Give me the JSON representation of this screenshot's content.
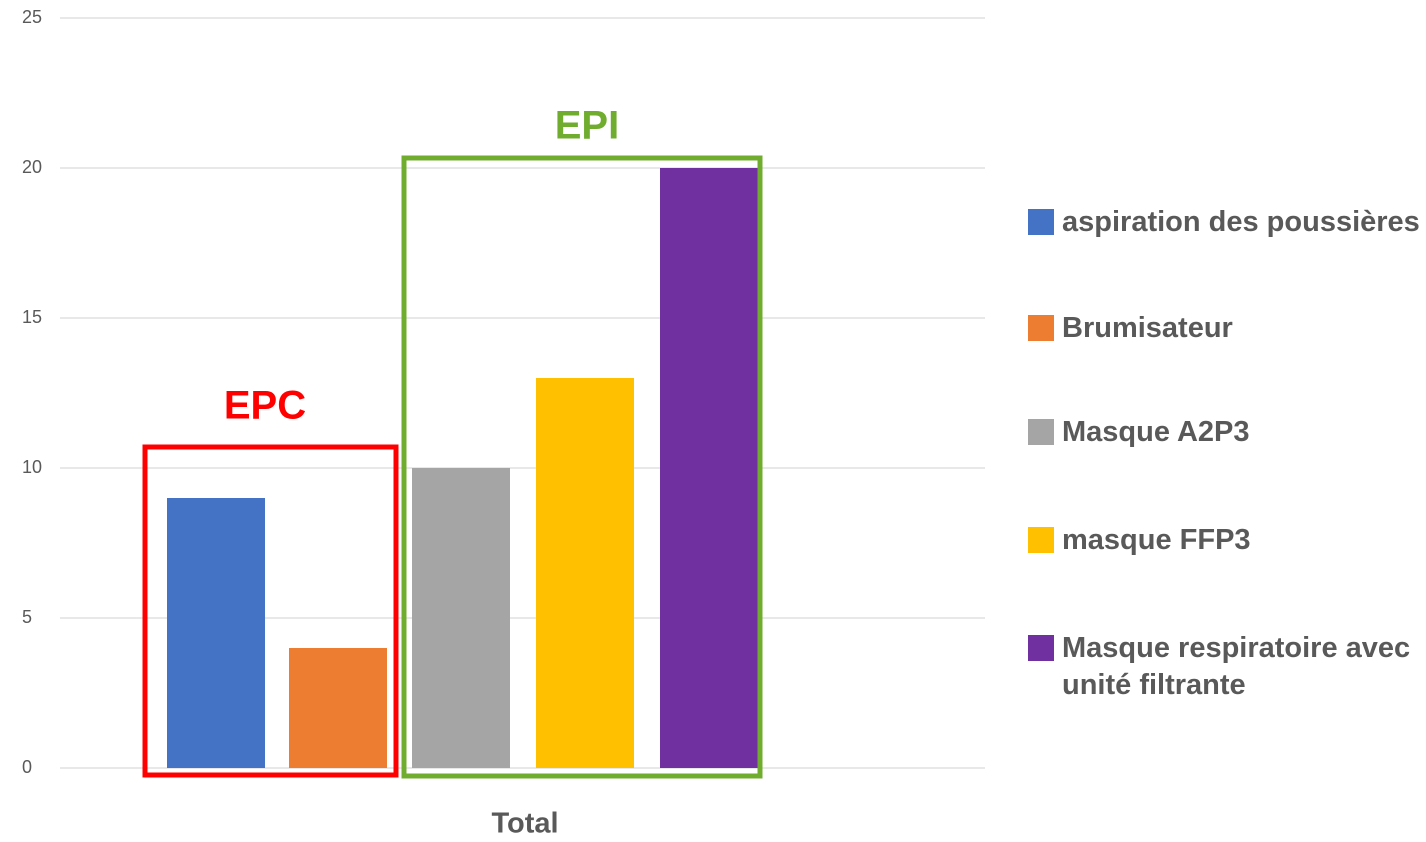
{
  "chart_data": {
    "type": "bar",
    "categories": [
      "Total"
    ],
    "series": [
      {
        "name": "aspiration des poussières",
        "color": "#4472c4",
        "values": [
          9
        ]
      },
      {
        "name": "Brumisateur",
        "color": "#ed7d31",
        "values": [
          4
        ]
      },
      {
        "name": "Masque A2P3",
        "color": "#a5a5a5",
        "values": [
          10
        ]
      },
      {
        "name": "masque FFP3",
        "color": "#ffc000",
        "values": [
          13
        ]
      },
      {
        "name": "Masque respiratoire avec unité filtrante",
        "color": "#7030a0",
        "values": [
          20
        ]
      }
    ],
    "ylim": [
      0,
      25
    ],
    "yticks": [
      0,
      5,
      10,
      15,
      20,
      25
    ],
    "grid": true,
    "legend": "right",
    "annotations": [
      {
        "text": "EPC",
        "color": "#ff0000"
      },
      {
        "text": "EPI",
        "color": "#70ad2f"
      }
    ]
  }
}
